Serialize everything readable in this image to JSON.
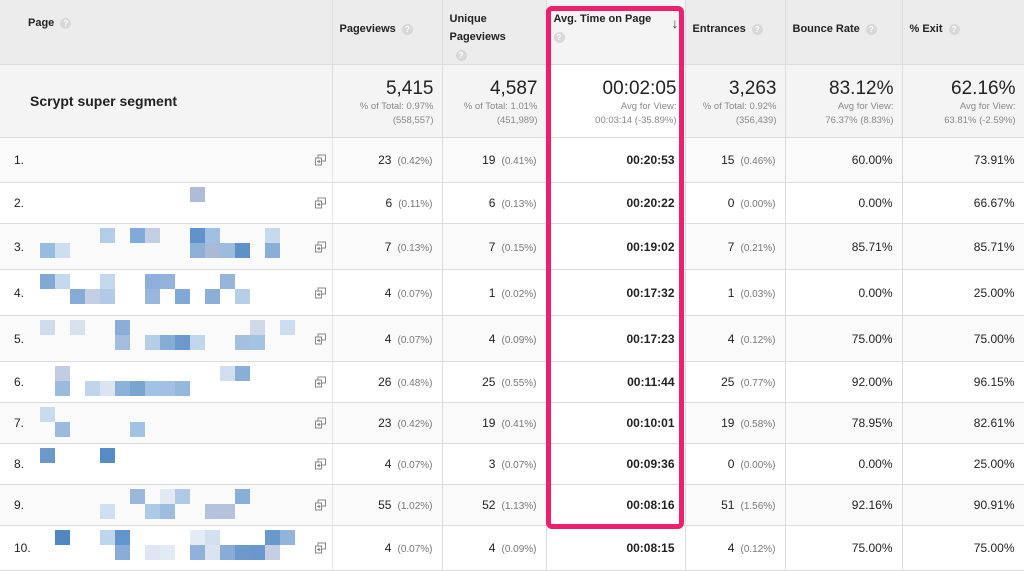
{
  "columns": [
    {
      "label": "Page"
    },
    {
      "label": "Pageviews"
    },
    {
      "label": "Unique Pageviews"
    },
    {
      "label": "Avg. Time on Page"
    },
    {
      "label": "Entrances"
    },
    {
      "label": "Bounce Rate"
    },
    {
      "label": "% Exit"
    }
  ],
  "help_glyph": "?",
  "sort_glyph": "↓",
  "summary": {
    "segment": "Scrypt super segment",
    "pageviews": {
      "value": "5,415",
      "sub1": "% of Total: 0.97%",
      "sub2": "(558,557)"
    },
    "unique_pageviews": {
      "value": "4,587",
      "sub1": "% of Total: 1.01%",
      "sub2": "(451,989)"
    },
    "avg_time": {
      "value": "00:02:05",
      "sub1": "Avg for View:",
      "sub2": "00:03:14 (-35.89%)"
    },
    "entrances": {
      "value": "3,263",
      "sub1": "% of Total: 0.92%",
      "sub2": "(356,439)"
    },
    "bounce_rate": {
      "value": "83.12%",
      "sub1": "Avg for View:",
      "sub2": "76.37% (8.83%)"
    },
    "exit": {
      "value": "62.16%",
      "sub1": "Avg for View:",
      "sub2": "63.81% (-2.59%)"
    }
  },
  "rows": [
    {
      "rank": "1.",
      "pv": "23",
      "pv_pct": "(0.42%)",
      "upv": "19",
      "upv_pct": "(0.41%)",
      "avg": "00:20:53",
      "ent": "15",
      "ent_pct": "(0.46%)",
      "bounce": "60.00%",
      "exit": "73.91%"
    },
    {
      "rank": "2.",
      "pv": "6",
      "pv_pct": "(0.11%)",
      "upv": "6",
      "upv_pct": "(0.13%)",
      "avg": "00:20:22",
      "ent": "0",
      "ent_pct": "(0.00%)",
      "bounce": "0.00%",
      "exit": "66.67%"
    },
    {
      "rank": "3.",
      "pv": "7",
      "pv_pct": "(0.13%)",
      "upv": "7",
      "upv_pct": "(0.15%)",
      "avg": "00:19:02",
      "ent": "7",
      "ent_pct": "(0.21%)",
      "bounce": "85.71%",
      "exit": "85.71%"
    },
    {
      "rank": "4.",
      "pv": "4",
      "pv_pct": "(0.07%)",
      "upv": "1",
      "upv_pct": "(0.02%)",
      "avg": "00:17:32",
      "ent": "1",
      "ent_pct": "(0.03%)",
      "bounce": "0.00%",
      "exit": "25.00%"
    },
    {
      "rank": "5.",
      "pv": "4",
      "pv_pct": "(0.07%)",
      "upv": "4",
      "upv_pct": "(0.09%)",
      "avg": "00:17:23",
      "ent": "4",
      "ent_pct": "(0.12%)",
      "bounce": "75.00%",
      "exit": "75.00%"
    },
    {
      "rank": "6.",
      "pv": "26",
      "pv_pct": "(0.48%)",
      "upv": "25",
      "upv_pct": "(0.55%)",
      "avg": "00:11:44",
      "ent": "25",
      "ent_pct": "(0.77%)",
      "bounce": "92.00%",
      "exit": "96.15%"
    },
    {
      "rank": "7.",
      "pv": "23",
      "pv_pct": "(0.42%)",
      "upv": "19",
      "upv_pct": "(0.41%)",
      "avg": "00:10:01",
      "ent": "19",
      "ent_pct": "(0.58%)",
      "bounce": "78.95%",
      "exit": "82.61%"
    },
    {
      "rank": "8.",
      "pv": "4",
      "pv_pct": "(0.07%)",
      "upv": "3",
      "upv_pct": "(0.07%)",
      "avg": "00:09:36",
      "ent": "0",
      "ent_pct": "(0.00%)",
      "bounce": "0.00%",
      "exit": "25.00%"
    },
    {
      "rank": "9.",
      "pv": "55",
      "pv_pct": "(1.02%)",
      "upv": "52",
      "upv_pct": "(1.13%)",
      "avg": "00:08:16",
      "ent": "51",
      "ent_pct": "(1.56%)",
      "bounce": "92.16%",
      "exit": "90.91%"
    },
    {
      "rank": "10.",
      "pv": "4",
      "pv_pct": "(0.07%)",
      "upv": "4",
      "upv_pct": "(0.09%)",
      "avg": "00:08:15",
      "ent": "4",
      "ent_pct": "(0.12%)",
      "bounce": "75.00%",
      "exit": "75.00%"
    }
  ],
  "colors": {
    "highlight": "#ee1f6e",
    "header_bg": "#ececec",
    "pixel_palette": [
      "#5a8fc8",
      "#8fb6dd",
      "#b5cfe8",
      "#6e9ad0",
      "#a9b8d6",
      "#7fa6d3",
      "#cfdcec",
      "#4f86c2"
    ]
  }
}
